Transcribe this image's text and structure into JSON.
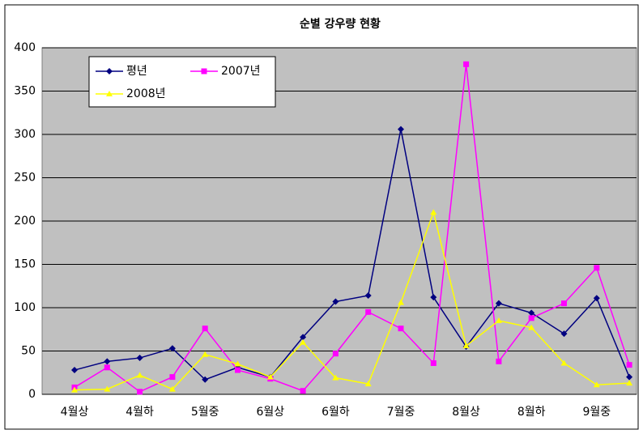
{
  "chart_data": {
    "type": "line",
    "title": "순별 강우량 현황",
    "categories": [
      "4월상",
      null,
      "4월하",
      null,
      "5월중",
      null,
      "6월상",
      null,
      "6월하",
      null,
      "7월중",
      null,
      "8월상",
      null,
      "8월하",
      null,
      "9월중",
      null
    ],
    "series": [
      {
        "name": "평년",
        "color": "#000080",
        "marker": "diamond",
        "values": [
          28,
          38,
          42,
          53,
          17,
          31,
          20,
          66,
          107,
          114,
          306,
          112,
          55,
          105,
          94,
          70,
          111,
          20
        ]
      },
      {
        "name": "2007년",
        "color": "#ff00ff",
        "marker": "square",
        "values": [
          8,
          31,
          3,
          20,
          76,
          28,
          18,
          4,
          47,
          95,
          76,
          36,
          381,
          38,
          88,
          105,
          146,
          34
        ]
      },
      {
        "name": "2008년",
        "color": "#ffff00",
        "marker": "triangle",
        "values": [
          5,
          6,
          22,
          6,
          46,
          35,
          20,
          60,
          19,
          12,
          106,
          210,
          56,
          85,
          77,
          36,
          11,
          13
        ]
      }
    ],
    "ylim": [
      0,
      400
    ],
    "yticks": [
      0,
      50,
      100,
      150,
      200,
      250,
      300,
      350,
      400
    ],
    "grid": true,
    "legend": "top-left"
  }
}
